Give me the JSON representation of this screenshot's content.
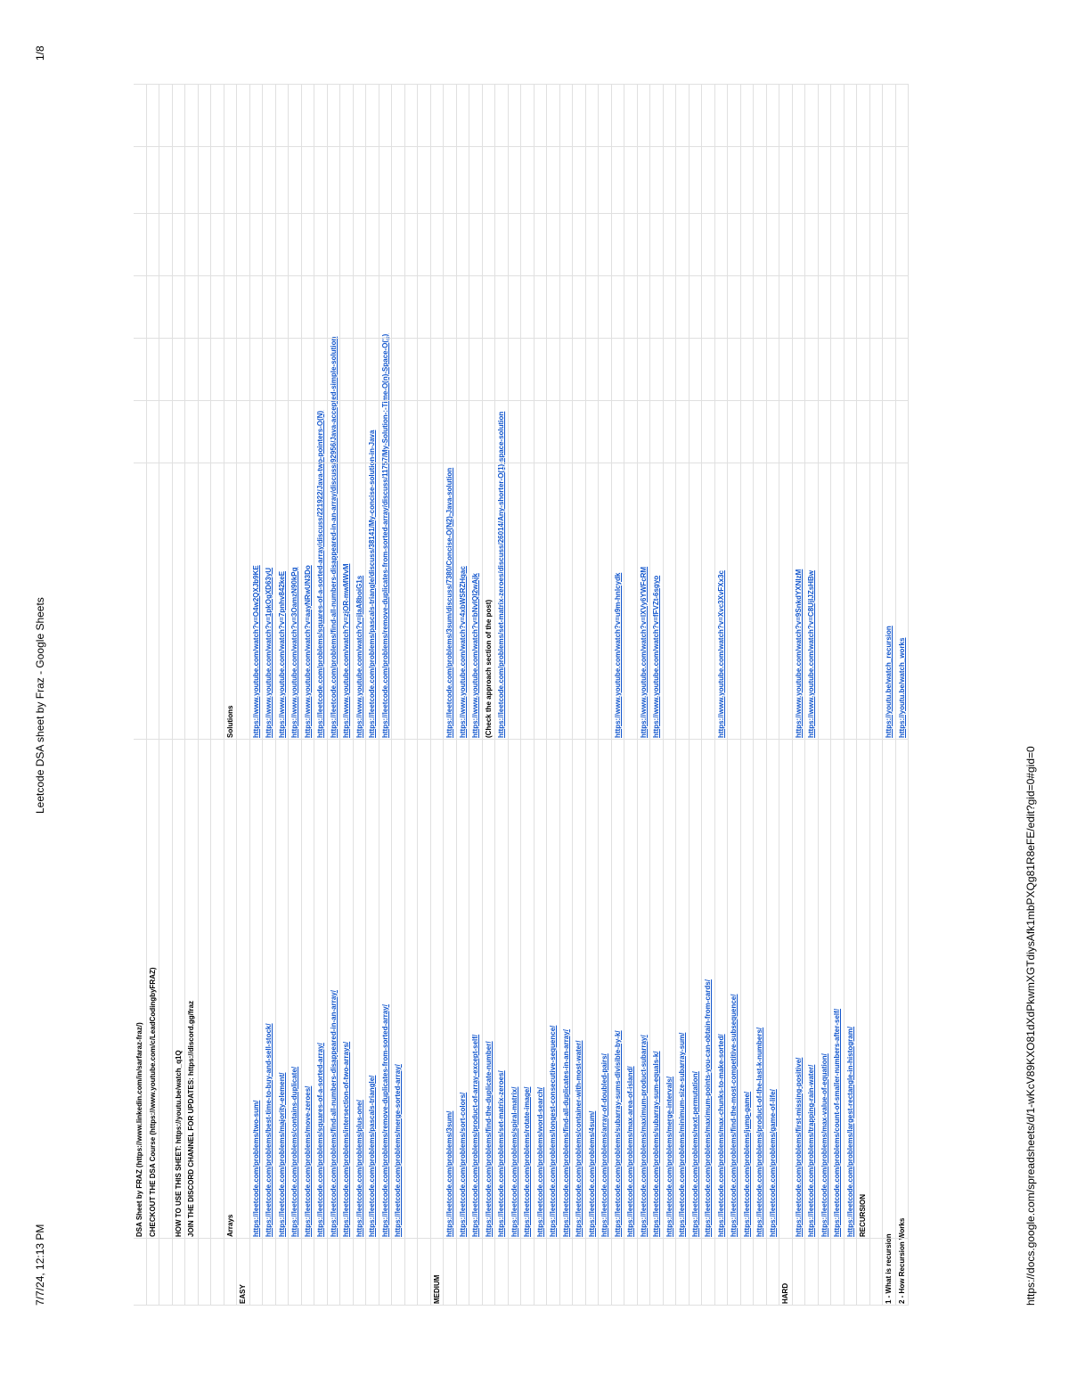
{
  "header": {
    "date": "7/7/24, 12:13 PM",
    "title": "Leetcode DSA sheet by Fraz - Google Sheets",
    "page": "1/8"
  },
  "footer": {
    "url": "https://docs.google.com/spreadsheets/d/1-wKcV89KXO81dXdPkwmXGTdiysAfk1mbPXQg81R8eFE/edit?gid=0#gid=0"
  },
  "sheet": {
    "rows": [
      {
        "b": "DSA Sheet by FRAZ (https://www.linkedin.com/in/sarfaraz-fraz/)"
      },
      {
        "b": "CHECKOUT THE DSA Course (https://www.youtube.com/c/LeadCodingbyFRAZ)"
      },
      {},
      {
        "b": "HOW TO USE THIS SHEET: https://youtu.be/watch_q1Q"
      },
      {
        "b": "JOIN THE DISCORD CHANNEL FOR UPDATES: https://discord.gg/fraz"
      },
      {},
      {},
      {
        "b": "Arrays",
        "c": "Solutions"
      },
      {
        "a": "EASY"
      },
      {
        "b": "https://leetcode.com/problems/two-sum/",
        "c": "https://www.youtube.com/watch?v=O4w2QXJb9KE"
      },
      {
        "b": "https://leetcode.com/problems/best-time-to-buy-and-sell-stock/",
        "c": "https://www.youtube.com/watch?v=1pkOgXD63yU"
      },
      {
        "b": "https://leetcode.com/problems/majority-element/",
        "c": "https://www.youtube.com/watch?v=7pnhv842keE"
      },
      {
        "b": "https://leetcode.com/problems/contains-duplicate/",
        "c": "https://www.youtube.com/watch?v=3OamzN90kPg"
      },
      {
        "b": "https://leetcode.com/problems/move-zeroes/",
        "c": "https://www.youtube.com/watch?v=aayNRwUN3Do"
      },
      {
        "b": "https://leetcode.com/problems/squares-of-a-sorted-array/",
        "c": "https://leetcode.com/problems/squares-of-a-sorted-array/discuss/221922/Java-two-pointers-O(N)"
      },
      {
        "b": "https://leetcode.com/problems/find-all-numbers-disappeared-in-an-array/",
        "c": "https://leetcode.com/problems/find-all-numbers-disappeared-in-an-array/discuss/92956/Java-accepted-simple-solution"
      },
      {
        "b": "https://leetcode.com/problems/intersection-of-two-arrays/",
        "c": "https://www.youtube.com/watch?v=zjOR-mwMWvM"
      },
      {
        "b": "https://leetcode.com/problems/plus-one/",
        "c": "https://www.youtube.com/watch?v=jIaA8boiG1s"
      },
      {
        "b": "https://leetcode.com/problems/pascals-triangle/",
        "c": "https://leetcode.com/problems/pascals-triangle/discuss/38141/My-concise-solution-in-Java"
      },
      {
        "b": "https://leetcode.com/problems/remove-duplicates-from-sorted-array/",
        "c": "https://leetcode.com/problems/remove-duplicates-from-sorted-array/discuss/11757/My-Solution-:-Time-O(n)-Space-O(1)"
      },
      {
        "b": "https://leetcode.com/problems/merge-sorted-array/"
      },
      {},
      {},
      {
        "a": "MEDIUM"
      },
      {
        "b": "https://leetcode.com/problems/3sum/",
        "c": "https://leetcode.com/problems/3sum/discuss/7380/Concise-O(N2)-Java-solution"
      },
      {
        "b": "https://leetcode.com/problems/sort-colors/",
        "c": "https://www.youtube.com/watch?v=4xbWSRZHqac"
      },
      {
        "b": "https://leetcode.com/problems/product-of-array-except-self/",
        "c": "https://www.youtube.com/watch?v=bNvIQI2wAjk"
      },
      {
        "b": "https://leetcode.com/problems/find-the-duplicate-number/",
        "c": "(Check the approach section of the post)"
      },
      {
        "b": "https://leetcode.com/problems/set-matrix-zeroes/",
        "c": "https://leetcode.com/problems/set-matrix-zeroes/discuss/26014/Any-shorter-O(1)-space-solution"
      },
      {
        "b": "https://leetcode.com/problems/spiral-matrix/"
      },
      {
        "b": "https://leetcode.com/problems/rotate-image/"
      },
      {
        "b": "https://leetcode.com/problems/word-search/"
      },
      {
        "b": "https://leetcode.com/problems/longest-consecutive-sequence/"
      },
      {
        "b": "https://leetcode.com/problems/find-all-duplicates-in-an-array/"
      },
      {
        "b": "https://leetcode.com/problems/container-with-most-water/"
      },
      {
        "b": "https://leetcode.com/problems/4sum/"
      },
      {
        "b": "https://leetcode.com/problems/array-of-doubled-pairs/"
      },
      {
        "b": "https://leetcode.com/problems/subarray-sums-divisible-by-k/",
        "c": "https://www.youtube.com/watch?v=u9m-hnlcydk"
      },
      {
        "b": "https://leetcode.com/problems/max-area-of-island/"
      },
      {
        "b": "https://leetcode.com/problems/maximum-product-subarray/",
        "c": "https://www.youtube.com/watch?v=lXVy6YWFcRM"
      },
      {
        "b": "https://leetcode.com/problems/subarray-sum-equals-k/",
        "c": "https://www.youtube.com/watch?v=fFVZt-6sgyo"
      },
      {
        "b": "https://leetcode.com/problems/merge-intervals/"
      },
      {
        "b": "https://leetcode.com/problems/minimum-size-subarray-sum/"
      },
      {
        "b": "https://leetcode.com/problems/next-permutation/"
      },
      {
        "b": "https://leetcode.com/problems/maximum-points-you-can-obtain-from-cards/"
      },
      {
        "b": "https://leetcode.com/problems/max-chunks-to-make-sorted/",
        "c": "https://www.youtube.com/watch?v=Xvc3XvFXx3c"
      },
      {
        "b": "https://leetcode.com/problems/find-the-most-competitive-subsequence/"
      },
      {
        "b": "https://leetcode.com/problems/jump-game/"
      },
      {
        "b": "https://leetcode.com/problems/product-of-the-last-k-numbers/"
      },
      {
        "b": "https://leetcode.com/problems/game-of-life/"
      },
      {
        "a": "HARD"
      },
      {
        "b": "https://leetcode.com/problems/first-missing-positive/",
        "c": "https://www.youtube.com/watch?v=9SnkdYXNIzM"
      },
      {
        "b": "https://leetcode.com/problems/trapping-rain-water/",
        "c": "https://www.youtube.com/watch?v=C8UjlJZsHBw"
      },
      {
        "b": "https://leetcode.com/problems/max-value-of-equation/"
      },
      {
        "b": "https://leetcode.com/problems/count-of-smaller-numbers-after-self/"
      },
      {
        "b": "https://leetcode.com/problems/largest-rectangle-in-histogram/"
      },
      {
        "b": "RECURSION"
      },
      {},
      {
        "a": "1 - What is recursion",
        "c": "https://youtu.be/watch_recursion"
      },
      {
        "a": "2 - How Recursion Works",
        "c": "https://youtu.be/watch_works"
      }
    ]
  }
}
